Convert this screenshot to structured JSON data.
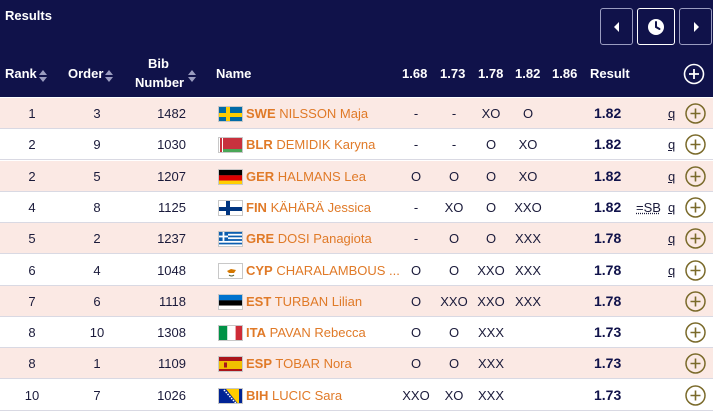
{
  "header": {
    "title": "Results",
    "columns": {
      "rank": "Rank",
      "order": "Order",
      "bib_line1": "Bib",
      "bib_line2": "Number",
      "name": "Name",
      "heights": [
        "1.68",
        "1.73",
        "1.78",
        "1.82",
        "1.86"
      ],
      "result": "Result"
    },
    "nav": [
      "prev-icon",
      "clock-icon",
      "next-icon"
    ]
  },
  "colors": {
    "header_bg": "#10124a",
    "row_shade": "#fbe9e4",
    "name_orange": "#e07a28",
    "plus_olive": "#7a6a2a"
  },
  "rows": [
    {
      "rank": "1",
      "order": "3",
      "bib": "1482",
      "flag": "SWE",
      "code": "SWE",
      "name": "NILSSON Maja",
      "attempts": [
        "-",
        "-",
        "XO",
        "O",
        ""
      ],
      "result": "1.82",
      "note": "",
      "q": "q"
    },
    {
      "rank": "2",
      "order": "9",
      "bib": "1030",
      "flag": "BLR",
      "code": "BLR",
      "name": "DEMIDIK Karyna",
      "attempts": [
        "-",
        "-",
        "O",
        "XO",
        ""
      ],
      "result": "1.82",
      "note": "",
      "q": "q"
    },
    {
      "rank": "2",
      "order": "5",
      "bib": "1207",
      "flag": "GER",
      "code": "GER",
      "name": "HALMANS Lea",
      "attempts": [
        "O",
        "O",
        "O",
        "XO",
        ""
      ],
      "result": "1.82",
      "note": "",
      "q": "q"
    },
    {
      "rank": "4",
      "order": "8",
      "bib": "1125",
      "flag": "FIN",
      "code": "FIN",
      "name": "KÄHÄRÄ Jessica",
      "attempts": [
        "-",
        "XO",
        "O",
        "XXO",
        ""
      ],
      "result": "1.82",
      "note": "=SB",
      "q": "q"
    },
    {
      "rank": "5",
      "order": "2",
      "bib": "1237",
      "flag": "GRE",
      "code": "GRE",
      "name": "DOSI Panagiota",
      "attempts": [
        "-",
        "O",
        "O",
        "XXX",
        ""
      ],
      "result": "1.78",
      "note": "",
      "q": "q"
    },
    {
      "rank": "6",
      "order": "4",
      "bib": "1048",
      "flag": "CYP",
      "code": "CYP",
      "name": "CHARALAMBOUS ...",
      "attempts": [
        "O",
        "O",
        "XXO",
        "XXX",
        ""
      ],
      "result": "1.78",
      "note": "",
      "q": "q"
    },
    {
      "rank": "7",
      "order": "6",
      "bib": "1118",
      "flag": "EST",
      "code": "EST",
      "name": "TURBAN Lilian",
      "attempts": [
        "O",
        "XXO",
        "XXO",
        "XXX",
        ""
      ],
      "result": "1.78",
      "note": "",
      "q": ""
    },
    {
      "rank": "8",
      "order": "10",
      "bib": "1308",
      "flag": "ITA",
      "code": "ITA",
      "name": "PAVAN Rebecca",
      "attempts": [
        "O",
        "O",
        "XXX",
        "",
        ""
      ],
      "result": "1.73",
      "note": "",
      "q": ""
    },
    {
      "rank": "8",
      "order": "1",
      "bib": "1109",
      "flag": "ESP",
      "code": "ESP",
      "name": "TOBAR Nora",
      "attempts": [
        "O",
        "O",
        "XXX",
        "",
        ""
      ],
      "result": "1.73",
      "note": "",
      "q": ""
    },
    {
      "rank": "10",
      "order": "7",
      "bib": "1026",
      "flag": "BIH",
      "code": "BIH",
      "name": "LUCIC Sara",
      "attempts": [
        "XXO",
        "XO",
        "XXX",
        "",
        ""
      ],
      "result": "1.73",
      "note": "",
      "q": ""
    }
  ]
}
